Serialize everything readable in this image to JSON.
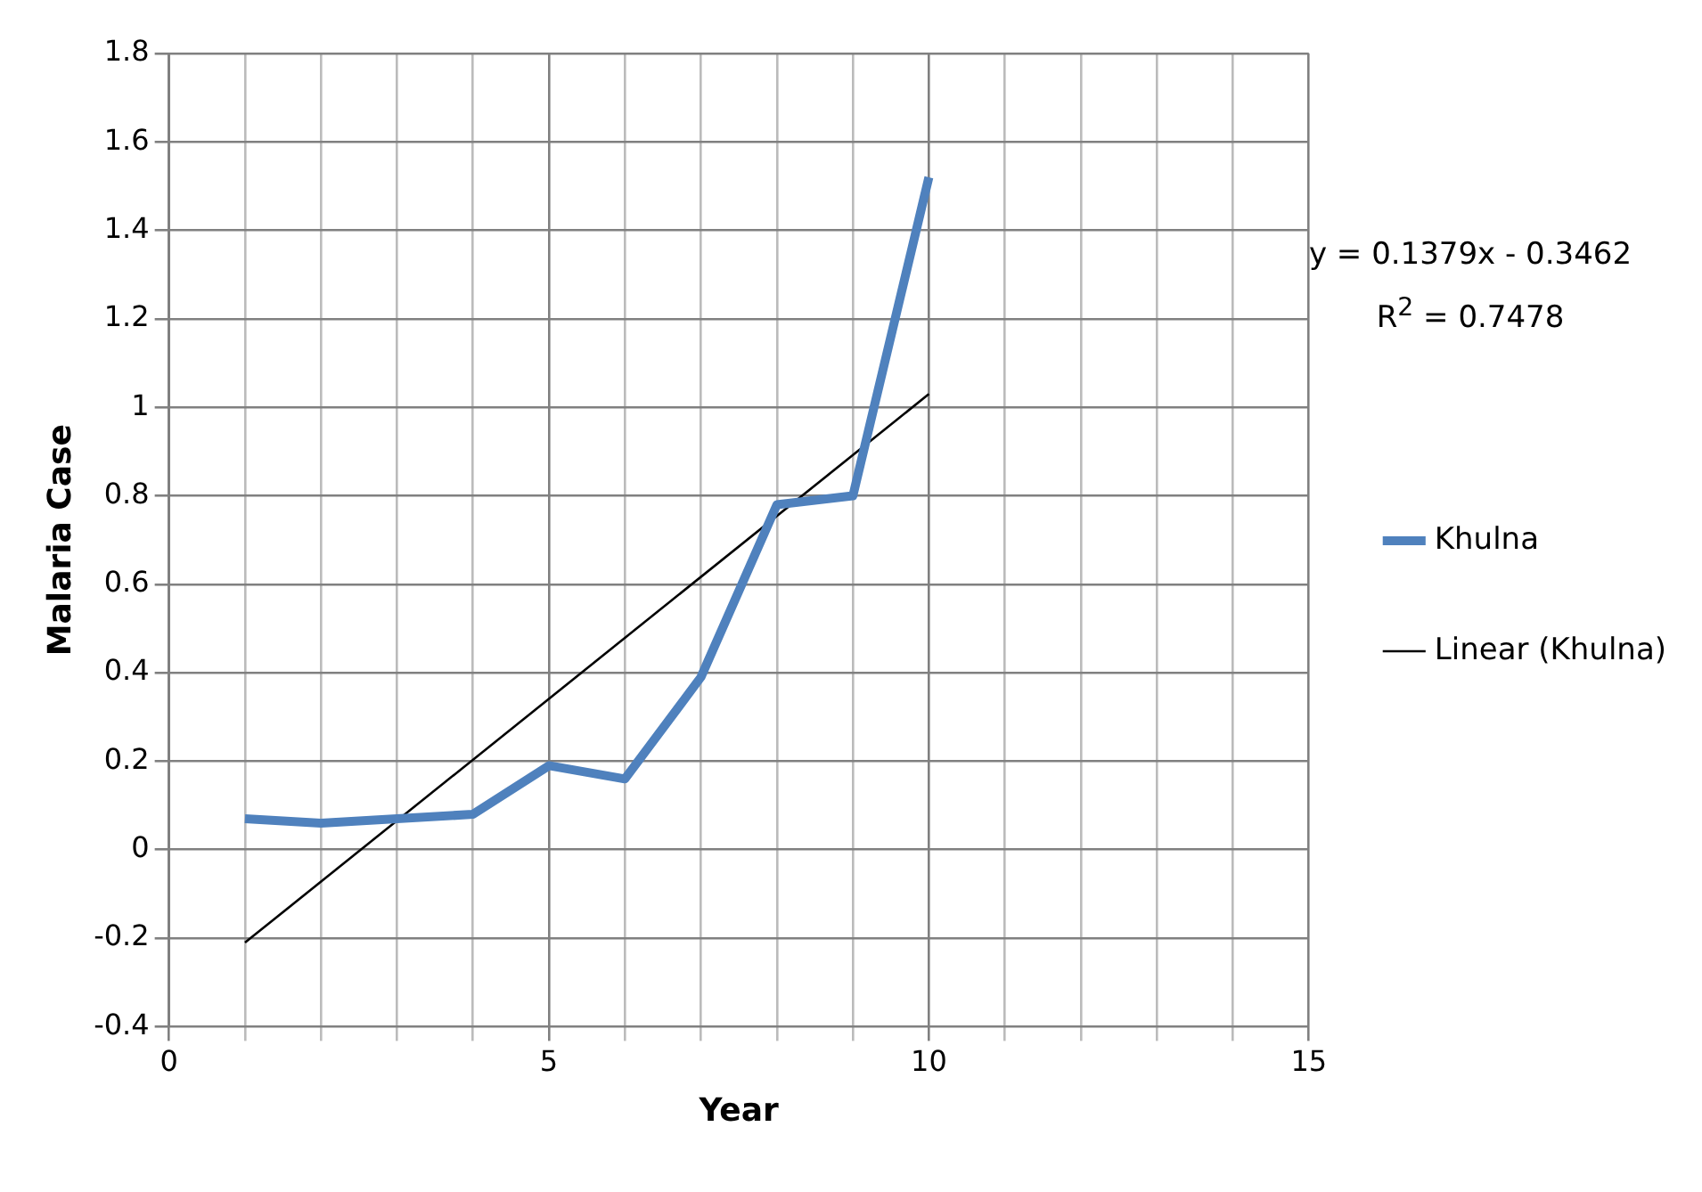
{
  "chart_data": {
    "type": "line",
    "xlabel": "Year",
    "ylabel": "Malaria Case",
    "series": [
      {
        "name": "Khulna",
        "color": "#4f81bd",
        "x": [
          1,
          2,
          3,
          4,
          5,
          6,
          7,
          8,
          9,
          10
        ],
        "values": [
          0.07,
          0.06,
          0.07,
          0.08,
          0.19,
          0.16,
          0.39,
          0.78,
          0.8,
          1.52
        ]
      },
      {
        "name": "Linear (Khulna)",
        "color": "#000000",
        "x": [
          1,
          10
        ],
        "values": [
          -0.21,
          1.03
        ]
      }
    ],
    "xlim": [
      0,
      15
    ],
    "xticks": [
      0,
      {
        "value": 1,
        "label": null
      },
      {
        "value": 2,
        "label": null
      },
      {
        "value": 3,
        "label": null
      },
      {
        "value": 4,
        "label": null
      },
      5,
      {
        "value": 6,
        "label": null
      },
      {
        "value": 7,
        "label": null
      },
      {
        "value": 8,
        "label": null
      },
      {
        "value": 9,
        "label": null
      },
      10,
      {
        "value": 11,
        "label": null
      },
      {
        "value": 12,
        "label": null
      },
      {
        "value": 13,
        "label": null
      },
      {
        "value": 14,
        "label": null
      },
      15
    ],
    "ylim": [
      -0.4,
      1.8
    ],
    "yticks": [
      -0.4,
      -0.2,
      0,
      0.2,
      0.4,
      0.6,
      0.8,
      1,
      1.2,
      1.4,
      1.6,
      1.8
    ],
    "grid": true,
    "legend": "right",
    "marker": "none",
    "annotations": [
      "y = 0.1379x - 0.3462",
      "R$^{2}$ = 0.7478"
    ]
  }
}
